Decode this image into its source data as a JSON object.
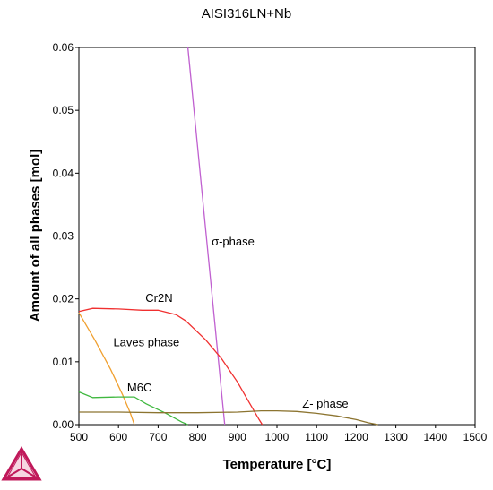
{
  "chart_data": {
    "type": "line",
    "title": "AISI316LN+Nb",
    "xlabel": "Temperature [°C]",
    "ylabel": "Amount of all phases [mol]",
    "xlim": [
      500,
      1500
    ],
    "ylim": [
      0,
      0.06
    ],
    "xticks": [
      500,
      600,
      700,
      800,
      900,
      1000,
      1100,
      1200,
      1300,
      1400,
      1500
    ],
    "yticks": [
      0.0,
      0.01,
      0.02,
      0.03,
      0.04,
      0.05,
      0.06
    ],
    "ytick_labels": [
      "0.00",
      "0.01",
      "0.02",
      "0.03",
      "0.04",
      "0.05",
      "0.06"
    ],
    "grid": false,
    "series": [
      {
        "name": "σ-phase",
        "color": "#c060d0",
        "points": [
          [
            775,
            0.06
          ],
          [
            868,
            0.0
          ]
        ]
      },
      {
        "name": "Cr2N",
        "color": "#f03030",
        "points": [
          [
            500,
            0.018
          ],
          [
            535,
            0.0185
          ],
          [
            600,
            0.0184
          ],
          [
            660,
            0.0182
          ],
          [
            700,
            0.0182
          ],
          [
            745,
            0.0175
          ],
          [
            770,
            0.0165
          ],
          [
            820,
            0.0135
          ],
          [
            860,
            0.0105
          ],
          [
            900,
            0.0068
          ],
          [
            930,
            0.0035
          ],
          [
            955,
            0.0008
          ],
          [
            963,
            0.0
          ]
        ]
      },
      {
        "name": "Laves phase",
        "color": "#f0a030",
        "points": [
          [
            500,
            0.0178
          ],
          [
            540,
            0.0135
          ],
          [
            580,
            0.0088
          ],
          [
            610,
            0.0048
          ],
          [
            630,
            0.0018
          ],
          [
            640,
            0.0
          ]
        ]
      },
      {
        "name": "M6C",
        "color": "#40b840",
        "points": [
          [
            500,
            0.0052
          ],
          [
            535,
            0.0043
          ],
          [
            600,
            0.0044
          ],
          [
            640,
            0.0044
          ],
          [
            670,
            0.0033
          ],
          [
            720,
            0.0018
          ],
          [
            760,
            0.0004
          ],
          [
            775,
            0.0
          ]
        ]
      },
      {
        "name": "Z- phase",
        "color": "#8c7430",
        "points": [
          [
            500,
            0.002
          ],
          [
            600,
            0.002
          ],
          [
            700,
            0.0019
          ],
          [
            800,
            0.0019
          ],
          [
            900,
            0.002
          ],
          [
            960,
            0.0022
          ],
          [
            1000,
            0.0022
          ],
          [
            1050,
            0.0021
          ],
          [
            1100,
            0.0018
          ],
          [
            1150,
            0.0014
          ],
          [
            1200,
            0.0008
          ],
          [
            1230,
            0.0003
          ],
          [
            1255,
            0.0
          ]
        ]
      }
    ],
    "annotations": [
      {
        "text": "σ-phase",
        "x": 835,
        "y": 0.0285
      },
      {
        "text": "Cr2N",
        "x": 668,
        "y": 0.0195
      },
      {
        "text": "Laves phase",
        "x": 587,
        "y": 0.0125
      },
      {
        "text": "M6C",
        "x": 622,
        "y": 0.0053
      },
      {
        "text": "Z- phase",
        "x": 1064,
        "y": 0.0027
      }
    ]
  },
  "logo": {
    "name": "thermo-calc-logo-icon",
    "color": "#c0185a"
  }
}
